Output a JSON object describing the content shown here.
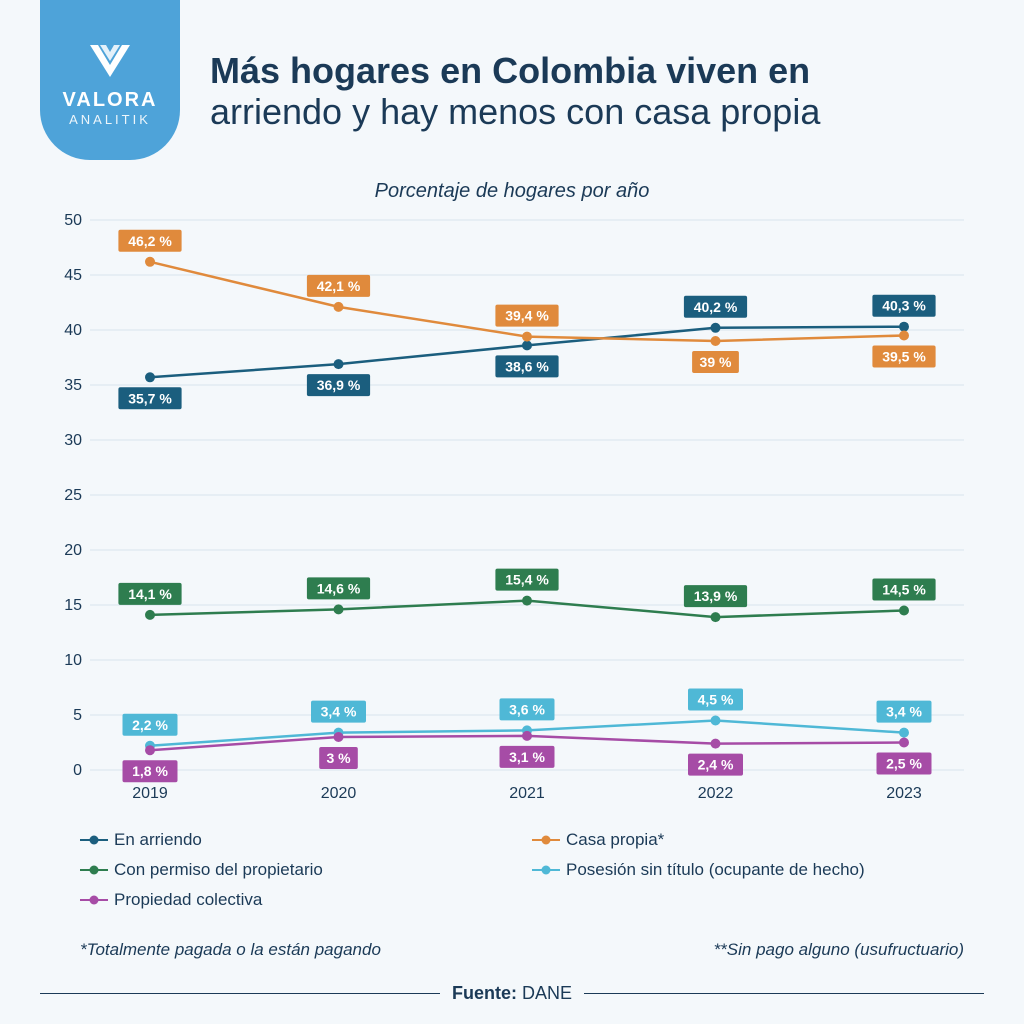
{
  "brand": {
    "name": "VALORA",
    "sub": "ANALITIK"
  },
  "title": {
    "line1": "Más hogares en Colombia viven en",
    "line2": "arriendo y hay menos con casa propia"
  },
  "subtitle": "Porcentaje de hogares por año",
  "chart": {
    "type": "line",
    "background": "#f4f8fb",
    "years": [
      "2019",
      "2020",
      "2021",
      "2022",
      "2023"
    ],
    "ylim": [
      0,
      50
    ],
    "ytick_step": 5,
    "axis_color": "#1b3a57",
    "axis_fontsize": 16,
    "grid_color": "#d9e4ec",
    "label_box_fontsize": 14,
    "marker_radius": 5,
    "line_width": 2.5,
    "series": [
      {
        "key": "arriendo",
        "label": "En arriendo",
        "color": "#1b5e7e",
        "values": [
          35.7,
          36.9,
          38.6,
          40.2,
          40.3
        ],
        "labels": [
          "35,7 %",
          "36,9 %",
          "38,6 %",
          "40,2 %",
          "40,3 %"
        ],
        "label_pos": [
          "below",
          "below",
          "below",
          "above",
          "above"
        ]
      },
      {
        "key": "propia",
        "label": "Casa propia*",
        "color": "#e08a3c",
        "values": [
          46.2,
          42.1,
          39.4,
          39.0,
          39.5
        ],
        "labels": [
          "46,2 %",
          "42,1 %",
          "39,4 %",
          "39 %",
          "39,5 %"
        ],
        "label_pos": [
          "above",
          "above",
          "above",
          "below",
          "below"
        ]
      },
      {
        "key": "permiso",
        "label": "Con permiso del propietario",
        "color": "#2e7d4f",
        "values": [
          14.1,
          14.6,
          15.4,
          13.9,
          14.5
        ],
        "labels": [
          "14,1 %",
          "14,6 %",
          "15,4 %",
          "13,9 %",
          "14,5 %"
        ],
        "label_pos": [
          "above",
          "above",
          "above",
          "above",
          "above"
        ]
      },
      {
        "key": "posesion",
        "label": "Posesión sin título (ocupante de hecho)",
        "color": "#4fb8d6",
        "values": [
          2.2,
          3.4,
          3.6,
          4.5,
          3.4
        ],
        "labels": [
          "2,2 %",
          "3,4 %",
          "3,6 %",
          "4,5 %",
          "3,4 %"
        ],
        "label_pos": [
          "above",
          "above",
          "above",
          "above",
          "above"
        ]
      },
      {
        "key": "colectiva",
        "label": "Propiedad colectiva",
        "color": "#a64ca6",
        "values": [
          1.8,
          3.0,
          3.1,
          2.4,
          2.5
        ],
        "labels": [
          "1,8 %",
          "3 %",
          "3,1 %",
          "2,4 %",
          "2,5 %"
        ],
        "label_pos": [
          "below",
          "below",
          "below",
          "below",
          "below"
        ]
      }
    ]
  },
  "footnotes": {
    "left": "*Totalmente pagada o la están pagando",
    "right": "**Sin pago alguno (usufructuario)"
  },
  "source": {
    "label": "Fuente:",
    "value": "DANE"
  }
}
